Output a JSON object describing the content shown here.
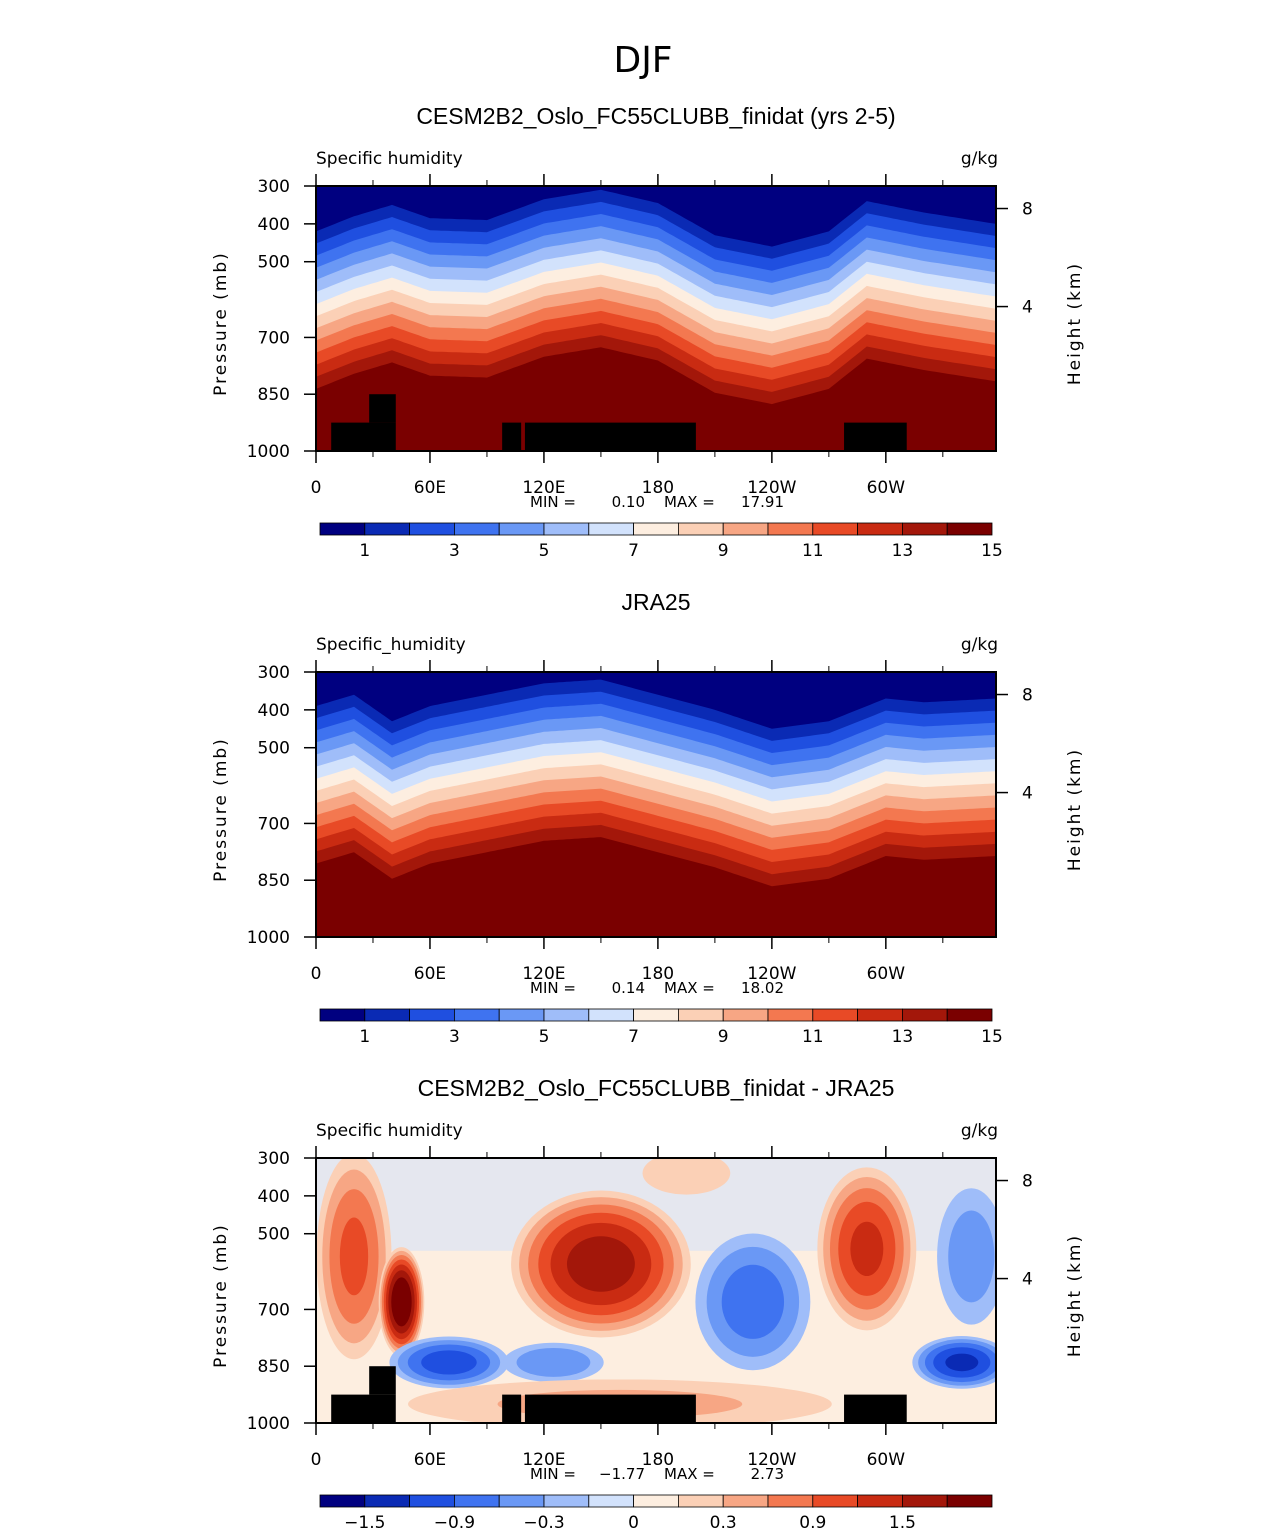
{
  "page_title": "DJF",
  "colors": {
    "levels": [
      "#000080",
      "#0a2ab4",
      "#1f4fe0",
      "#3f73f0",
      "#6a98f5",
      "#9fbdf9",
      "#d2e2fc",
      "#fdeee0",
      "#fbd0b6",
      "#f7a684",
      "#f37850",
      "#e84a26",
      "#c92b12",
      "#a3170a",
      "#7a0000"
    ],
    "land": "#000000"
  },
  "chart_data": [
    {
      "type": "contour",
      "title": "CESM2B2_Oslo_FC55CLUBB_finidat (yrs 2-5)",
      "left_label": "Specific humidity",
      "right_label": "g/kg",
      "ylabel": "Pressure (mb)",
      "y2label": "Height (km)",
      "x_ticks": [
        "0",
        "60E",
        "120E",
        "180",
        "120W",
        "60W"
      ],
      "x_tick_values": [
        0,
        60,
        120,
        180,
        240,
        300
      ],
      "x_range": [
        0,
        358
      ],
      "y_ticks": [
        "300",
        "400",
        "500",
        "700",
        "850",
        "1000"
      ],
      "y_tick_values": [
        300,
        400,
        500,
        700,
        850,
        1000
      ],
      "y_range": [
        300,
        1000
      ],
      "y2_ticks": [
        "8",
        "4"
      ],
      "y2_tick_values": [
        8,
        4
      ],
      "min_label": "MIN =",
      "min_value": "0.10",
      "max_label": "MAX =",
      "max_value": "17.91",
      "colorbar_labels": [
        "1",
        "3",
        "5",
        "7",
        "9",
        "11",
        "13",
        "15"
      ],
      "contour_levels": [
        1,
        2,
        3,
        4,
        5,
        6,
        7,
        8,
        9,
        10,
        11,
        12,
        13,
        14
      ],
      "field": "mean",
      "upper_lines_hPa": [
        [
          0,
          420
        ],
        [
          20,
          380
        ],
        [
          40,
          350
        ],
        [
          60,
          385
        ],
        [
          90,
          390
        ],
        [
          120,
          335
        ],
        [
          150,
          310
        ],
        [
          180,
          345
        ],
        [
          210,
          430
        ],
        [
          240,
          460
        ],
        [
          270,
          420
        ],
        [
          290,
          340
        ],
        [
          320,
          370
        ],
        [
          358,
          400
        ]
      ],
      "level_spacing_hPa": 32,
      "land_blocks": [
        [
          8,
          925,
          42,
          1000
        ],
        [
          28,
          850,
          42,
          925
        ],
        [
          98,
          925,
          108,
          1000
        ],
        [
          110,
          925,
          200,
          1000
        ],
        [
          278,
          925,
          311,
          1000
        ]
      ]
    },
    {
      "type": "contour",
      "title": "JRA25",
      "left_label": "Specific_humidity",
      "right_label": "g/kg",
      "ylabel": "Pressure (mb)",
      "y2label": "Height (km)",
      "x_ticks": [
        "0",
        "60E",
        "120E",
        "180",
        "120W",
        "60W"
      ],
      "x_tick_values": [
        0,
        60,
        120,
        180,
        240,
        300
      ],
      "x_range": [
        0,
        358
      ],
      "y_ticks": [
        "300",
        "400",
        "500",
        "700",
        "850",
        "1000"
      ],
      "y_tick_values": [
        300,
        400,
        500,
        700,
        850,
        1000
      ],
      "y_range": [
        300,
        1000
      ],
      "y2_ticks": [
        "8",
        "4"
      ],
      "y2_tick_values": [
        8,
        4
      ],
      "min_label": "MIN =",
      "min_value": "0.14",
      "max_label": "MAX =",
      "max_value": "18.02",
      "colorbar_labels": [
        "1",
        "3",
        "5",
        "7",
        "9",
        "11",
        "13",
        "15"
      ],
      "contour_levels": [
        1,
        2,
        3,
        4,
        5,
        6,
        7,
        8,
        9,
        10,
        11,
        12,
        13,
        14
      ],
      "field": "mean",
      "upper_lines_hPa": [
        [
          0,
          390
        ],
        [
          20,
          360
        ],
        [
          40,
          430
        ],
        [
          60,
          390
        ],
        [
          90,
          360
        ],
        [
          120,
          330
        ],
        [
          150,
          320
        ],
        [
          180,
          360
        ],
        [
          210,
          400
        ],
        [
          240,
          450
        ],
        [
          270,
          430
        ],
        [
          300,
          370
        ],
        [
          320,
          380
        ],
        [
          358,
          370
        ]
      ],
      "level_spacing_hPa": 32,
      "land_blocks": []
    },
    {
      "type": "contour",
      "title": "CESM2B2_Oslo_FC55CLUBB_finidat - JRA25",
      "left_label": "Specific humidity",
      "right_label": "g/kg",
      "ylabel": "Pressure (mb)",
      "y2label": "Height (km)",
      "x_ticks": [
        "0",
        "60E",
        "120E",
        "180",
        "120W",
        "60W"
      ],
      "x_tick_values": [
        0,
        60,
        120,
        180,
        240,
        300
      ],
      "x_range": [
        0,
        358
      ],
      "y_ticks": [
        "300",
        "400",
        "500",
        "700",
        "850",
        "1000"
      ],
      "y_tick_values": [
        300,
        400,
        500,
        700,
        850,
        1000
      ],
      "y_range": [
        300,
        1000
      ],
      "y2_ticks": [
        "8",
        "4"
      ],
      "y2_tick_values": [
        8,
        4
      ],
      "min_label": "MIN =",
      "min_value": "−1.77",
      "max_label": "MAX =",
      "max_value": "2.73",
      "colorbar_labels": [
        "−1.5",
        "−0.9",
        "−0.3",
        "0",
        "0.3",
        "0.9",
        "1.5"
      ],
      "contour_levels": [
        -1.8,
        -1.5,
        -1.2,
        -0.9,
        -0.6,
        -0.3,
        0,
        0.3,
        0.6,
        0.9,
        1.2,
        1.5,
        1.8,
        2.1
      ],
      "field": "difference",
      "anomalies": [
        {
          "lon": 20,
          "p": 560,
          "amp": 1.2,
          "wx": 14,
          "wp": 220
        },
        {
          "lon": 45,
          "p": 680,
          "amp": 2.4,
          "wx": 8,
          "wp": 110
        },
        {
          "lon": 150,
          "p": 580,
          "amp": 1.9,
          "wx": 32,
          "wp": 150
        },
        {
          "lon": 290,
          "p": 540,
          "amp": 1.5,
          "wx": 18,
          "wp": 170
        },
        {
          "lon": 230,
          "p": 680,
          "amp": -1.0,
          "wx": 22,
          "wp": 150
        },
        {
          "lon": 70,
          "p": 840,
          "amp": -1.3,
          "wx": 22,
          "wp": 55
        },
        {
          "lon": 340,
          "p": 840,
          "amp": -1.5,
          "wx": 18,
          "wp": 55
        },
        {
          "lon": 125,
          "p": 840,
          "amp": -0.8,
          "wx": 20,
          "wp": 45
        },
        {
          "lon": 345,
          "p": 560,
          "amp": -0.7,
          "wx": 14,
          "wp": 160
        },
        {
          "lon": 160,
          "p": 950,
          "amp": 0.6,
          "wx": 90,
          "wp": 60
        },
        {
          "lon": 195,
          "p": 340,
          "amp": 0.3,
          "wx": 25,
          "wp": 70
        }
      ],
      "land_blocks": [
        [
          8,
          925,
          42,
          1000
        ],
        [
          28,
          850,
          42,
          925
        ],
        [
          98,
          925,
          108,
          1000
        ],
        [
          110,
          925,
          200,
          1000
        ],
        [
          278,
          925,
          311,
          1000
        ]
      ]
    }
  ]
}
